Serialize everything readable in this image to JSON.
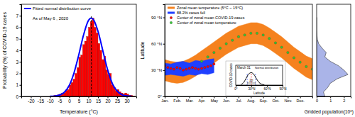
{
  "chart_data": [
    {
      "type": "histogram",
      "xlabel": "Temperature (°C)",
      "ylabel": "Probability (%) of COVID-19 cases",
      "annotation": "As of May 6 , 2020",
      "color": "#ff0000",
      "bins": [
        -10,
        -9,
        -8,
        -7,
        -6,
        -5,
        -4,
        -3,
        -2,
        -1,
        0,
        1,
        2,
        3,
        4,
        5,
        6,
        7,
        8,
        9,
        10,
        11,
        12,
        13,
        14,
        15,
        16,
        17,
        18,
        19,
        20,
        21,
        22,
        23,
        24,
        25,
        26,
        27,
        28,
        29,
        30,
        31,
        32,
        33,
        34
      ],
      "values": [
        0,
        0.05,
        0.1,
        0.1,
        0.15,
        0.2,
        0.3,
        0.3,
        0.5,
        0.6,
        1.0,
        1.2,
        1.5,
        2.0,
        2.5,
        3.4,
        3.6,
        4.5,
        4.8,
        5.2,
        6.0,
        6.5,
        6.8,
        6.0,
        5.5,
        4.6,
        4.0,
        3.2,
        3.5,
        2.3,
        1.9,
        2.0,
        1.0,
        0.8,
        0.5,
        0.6,
        0.4,
        0.3,
        0.2,
        0.3,
        0.2,
        0.1,
        0.1,
        0.05
      ],
      "series": [
        {
          "name": "Fitted normal distribution curve",
          "type": "line",
          "color": "#0000ff",
          "x": [
            -10,
            -7.5,
            -5,
            -2.5,
            0,
            2.5,
            5,
            7.5,
            10,
            11.5,
            12.5,
            15,
            17.5,
            20,
            22.5,
            25,
            27.5,
            30,
            32.5
          ],
          "values": [
            0.01,
            0.03,
            0.12,
            0.37,
            0.95,
            2.05,
            3.62,
            5.35,
            6.58,
            6.8,
            6.7,
            5.66,
            3.99,
            2.33,
            1.12,
            0.46,
            0.15,
            0.04,
            0.01
          ]
        }
      ],
      "reference_line": 11.5,
      "legend": "upper left",
      "xlim": [
        -25,
        35
      ],
      "xticks": [
        -20,
        -15,
        -10,
        -5,
        0,
        5,
        10,
        15,
        20,
        25,
        30
      ],
      "ylim": [
        0,
        8
      ],
      "yticks": [
        0,
        1,
        2,
        3,
        4,
        5,
        6,
        7
      ]
    },
    {
      "type": "line",
      "ylabel": "Latitude",
      "legend": "upper left",
      "series": [
        {
          "name": "Zonal mean temperature (5°C ~ 15°C)",
          "type": "area",
          "color": "#f5821f",
          "x": [
            0,
            0.5,
            1,
            1.5,
            2,
            2.5,
            3,
            3.5,
            4,
            4.5,
            5,
            5.5,
            6,
            6.5,
            7,
            7.5,
            8,
            8.5,
            9,
            9.5,
            10,
            10.5,
            11,
            11.5,
            12
          ],
          "low": [
            18,
            16,
            15,
            16,
            19,
            23,
            28,
            33,
            38,
            43,
            48,
            52,
            56,
            58,
            60,
            60,
            58,
            54,
            49,
            44,
            38,
            32,
            27,
            22,
            19
          ],
          "high": [
            42,
            40,
            39,
            40,
            43,
            47,
            52,
            57,
            62,
            67,
            72,
            76,
            80,
            82,
            84,
            84,
            82,
            78,
            73,
            68,
            62,
            56,
            51,
            46,
            43
          ]
        },
        {
          "name": "88.2% cases fell",
          "type": "area",
          "color": "#1f3fff",
          "x": [
            0,
            0.5,
            1,
            1.5,
            2,
            2.5,
            3,
            3.5,
            4
          ],
          "low": [
            24,
            25,
            24,
            23,
            25,
            24,
            26,
            25,
            27
          ],
          "high": [
            38,
            37,
            39,
            40,
            38,
            41,
            40,
            42,
            43
          ]
        },
        {
          "name": "Center of zonal mean COVID-19 cases",
          "type": "scatter",
          "marker": "circle",
          "color": "#ff0000",
          "x": [
            0,
            0.25,
            0.5,
            0.75,
            1,
            1.25,
            1.5,
            1.75,
            2,
            2.25,
            2.5,
            2.75,
            3,
            3.25,
            3.5,
            3.75,
            4
          ],
          "values": [
            35,
            33,
            32,
            31,
            33,
            32,
            30,
            31,
            32,
            33,
            32,
            31,
            32,
            33,
            34,
            35,
            37
          ]
        },
        {
          "name": "Center of zonal mean temperature",
          "type": "scatter",
          "marker": "circle",
          "color": "#33cc33",
          "x": [
            3,
            3.5,
            4,
            4.5,
            5,
            5.5,
            6,
            6.5,
            7,
            7.5,
            8,
            8.5,
            9,
            9.5,
            10,
            10.5,
            11,
            11.5,
            12
          ],
          "values": [
            40,
            45,
            50,
            55,
            60,
            64,
            68,
            70,
            72,
            72,
            70,
            66,
            61,
            56,
            50,
            44,
            39,
            34,
            31
          ]
        }
      ],
      "xlim": [
        0,
        12
      ],
      "xticks": [
        {
          "value": 0,
          "label": "Jan."
        },
        {
          "value": 1,
          "label": "Feb."
        },
        {
          "value": 2,
          "label": "Mar."
        },
        {
          "value": 3,
          "label": "Apr."
        },
        {
          "value": 4,
          "label": "May"
        },
        {
          "value": 5,
          "label": "Jun."
        },
        {
          "value": 6,
          "label": "Jul."
        },
        {
          "value": 7,
          "label": "Aug."
        },
        {
          "value": 8,
          "label": "Sep."
        },
        {
          "value": 9,
          "label": "Oct."
        },
        {
          "value": 10,
          "label": "Nov."
        },
        {
          "value": 11,
          "label": "Dec."
        }
      ],
      "ylim": [
        0,
        105
      ],
      "yticks": [
        {
          "value": 0,
          "label": "0°"
        },
        {
          "value": 30,
          "label": "30 °N"
        },
        {
          "value": 60,
          "label": "60 °N"
        },
        {
          "value": 90,
          "label": "90 °N"
        }
      ]
    },
    {
      "type": "area",
      "orientation": "horizontal",
      "xlabel": "Gridded population(10⁸)",
      "color": "#aab4e8",
      "y": [
        0,
        5,
        10,
        15,
        20,
        25,
        30,
        35,
        40,
        45,
        50,
        55,
        60,
        65,
        70,
        75,
        80,
        85,
        90
      ],
      "values": [
        0.6,
        0.5,
        0.8,
        1.0,
        1.5,
        2.3,
        2.0,
        1.6,
        1.0,
        0.6,
        0.7,
        0.4,
        0.15,
        0.05,
        0.02,
        0,
        0,
        0,
        0
      ],
      "xlim": [
        0,
        2.5
      ],
      "xticks": [
        0,
        1,
        2
      ],
      "ylim": [
        0,
        105
      ],
      "tick_labels": "x"
    },
    {
      "type": "line",
      "title": "March 31",
      "annotation": "2σ",
      "xlabel": "Latitude",
      "ylabel": "COVID-19 cases",
      "series": [
        {
          "name": "Normal distribution",
          "color": "#000000",
          "x": [
            10,
            15,
            20,
            25,
            30,
            35,
            40,
            45,
            50,
            55
          ],
          "values": [
            0.05,
            0.2,
            0.55,
            0.9,
            1.0,
            0.85,
            0.5,
            0.2,
            0.07,
            0.02
          ]
        }
      ],
      "mean": 30,
      "sigma_bounds": [
        22,
        38
      ],
      "xlim": [
        0,
        90
      ],
      "xticks": [
        {
          "value": 0,
          "label": "0°"
        },
        {
          "value": 30,
          "label": "30°N"
        },
        {
          "value": 60,
          "label": "60°N"
        },
        {
          "value": 90,
          "label": "90°N"
        }
      ],
      "ylim": [
        0,
        1.6
      ],
      "tick_labels": "x"
    }
  ]
}
